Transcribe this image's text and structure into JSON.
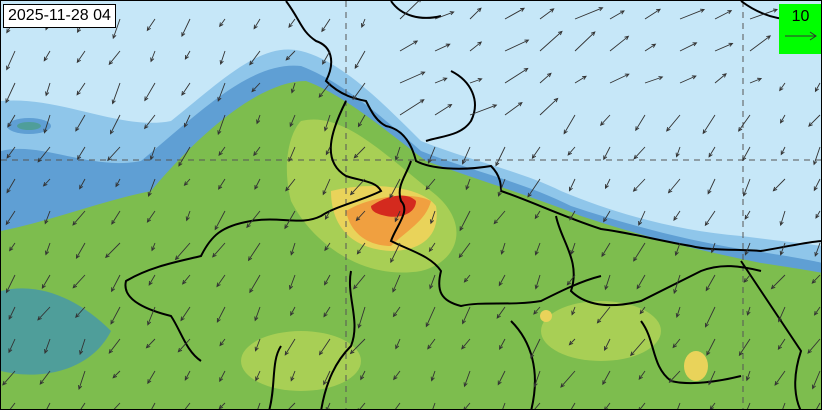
{
  "map": {
    "timestamp": "2025-11-28 04",
    "wind_reference": {
      "label": "10",
      "color": "#00ff00"
    },
    "colors": {
      "background": "#c6e7f8",
      "low": "#8fc6ea",
      "mid_blue": "#5f9fd4",
      "teal": "#4f9e9a",
      "green": "#7dbd4e",
      "light_green": "#a8cf55",
      "yellow": "#e9d35a",
      "orange": "#f0a040",
      "red": "#d42a1e",
      "border": "#000000",
      "wind_arrow": "#333333"
    }
  }
}
